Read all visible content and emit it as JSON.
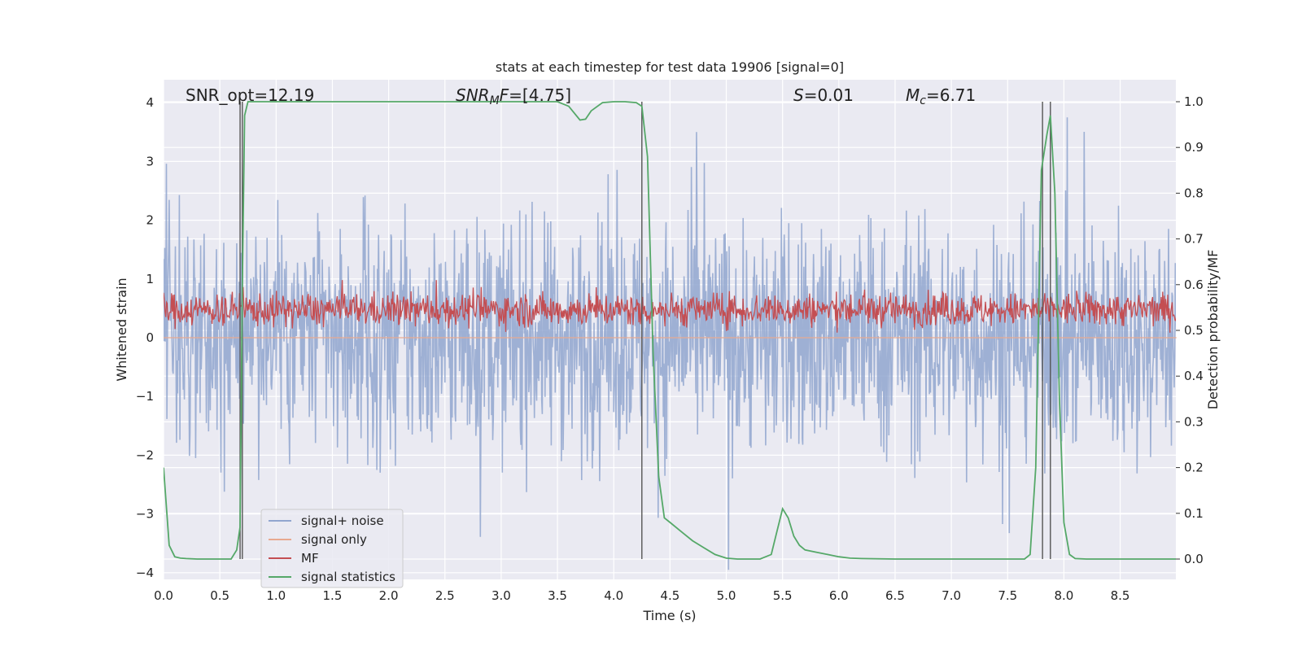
{
  "chart_data": {
    "type": "line",
    "title": "stats at each timestep for test data 19906 [signal=0]",
    "xlabel": "Time (s)",
    "ylabel_left": "Whitened strain",
    "ylabel_right": "Detection probability/MF",
    "xlim": [
      0.0,
      9.0
    ],
    "ylim_left": [
      -4.18,
      4.38
    ],
    "ylim_right": [
      -0.05,
      1.05
    ],
    "x_ticks": [
      "0.0",
      "0.5",
      "1.0",
      "1.5",
      "2.0",
      "2.5",
      "3.0",
      "3.5",
      "4.0",
      "4.5",
      "5.0",
      "5.5",
      "6.0",
      "6.5",
      "7.0",
      "7.5",
      "8.0",
      "8.5"
    ],
    "y_ticks_left": [
      "4",
      "3",
      "2",
      "1",
      "0",
      "−1",
      "−2",
      "−3",
      "−4"
    ],
    "y_ticks_right": [
      "1.0",
      "0.9",
      "0.8",
      "0.7",
      "0.6",
      "0.5",
      "0.4",
      "0.3",
      "0.2",
      "0.1",
      "0.0"
    ],
    "annotations": [
      {
        "text": "SNR_opt=12.19"
      },
      {
        "text": "SNR_MF=[4.75]"
      },
      {
        "text": "S=0.01"
      },
      {
        "text": "M_c=6.71"
      }
    ],
    "legend": {
      "location": "lower left",
      "entries": [
        {
          "label": "signal+ noise",
          "color": "#91a6cf"
        },
        {
          "label": "signal only",
          "color": "#e8a990"
        },
        {
          "label": "MF",
          "color": "#c44e52"
        },
        {
          "label": "signal statistics",
          "color": "#55a868"
        }
      ]
    },
    "vertical_lines_x": [
      0.68,
      0.7,
      4.25,
      7.81,
      7.88
    ],
    "series": [
      {
        "name": "signal statistics",
        "axis": "right",
        "x": [
          0.0,
          0.05,
          0.1,
          0.15,
          0.2,
          0.3,
          0.4,
          0.5,
          0.6,
          0.65,
          0.68,
          0.7,
          0.72,
          0.75,
          1.0,
          1.5,
          1.8,
          2.0,
          2.5,
          3.0,
          3.5,
          3.6,
          3.7,
          3.75,
          3.8,
          3.9,
          4.0,
          4.1,
          4.2,
          4.25,
          4.3,
          4.35,
          4.4,
          4.45,
          4.5,
          4.6,
          4.7,
          4.8,
          4.9,
          5.0,
          5.1,
          5.2,
          5.3,
          5.4,
          5.45,
          5.5,
          5.55,
          5.6,
          5.65,
          5.7,
          5.8,
          5.9,
          6.0,
          6.1,
          6.2,
          6.5,
          7.0,
          7.5,
          7.65,
          7.7,
          7.75,
          7.8,
          7.85,
          7.88,
          7.92,
          7.96,
          8.0,
          8.05,
          8.1,
          8.2,
          8.5,
          9.0
        ],
        "y": [
          0.2,
          0.03,
          0.005,
          0.002,
          0.001,
          0.0,
          0.0,
          0.0,
          0.0,
          0.02,
          0.07,
          0.6,
          0.97,
          1.0,
          1.0,
          1.0,
          1.0,
          1.0,
          1.0,
          1.0,
          1.0,
          0.99,
          0.96,
          0.962,
          0.98,
          0.998,
          1.0,
          1.0,
          0.998,
          0.99,
          0.88,
          0.45,
          0.18,
          0.09,
          0.08,
          0.06,
          0.04,
          0.025,
          0.01,
          0.002,
          0.0,
          0.0,
          0.0,
          0.01,
          0.06,
          0.11,
          0.09,
          0.05,
          0.03,
          0.02,
          0.015,
          0.01,
          0.005,
          0.002,
          0.001,
          0.0,
          0.0,
          0.0,
          0.0,
          0.01,
          0.2,
          0.85,
          0.93,
          0.97,
          0.8,
          0.35,
          0.08,
          0.01,
          0.001,
          0.0,
          0.0,
          0.0
        ]
      },
      {
        "name": "MF",
        "axis": "left",
        "values_summary": "dense noisy trace, mostly 0.0 to 0.5, peaks near 0.9"
      },
      {
        "name": "signal+ noise",
        "axis": "left",
        "values_summary": "dense noise trace, mostly -2 to 2, peaks near +3.7 and -3.9"
      },
      {
        "name": "signal only",
        "axis": "left",
        "values_summary": "not visible (flat at 0)"
      }
    ]
  }
}
